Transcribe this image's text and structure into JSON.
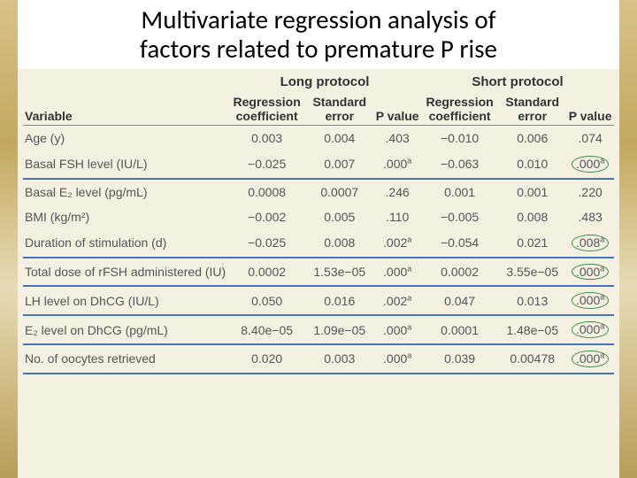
{
  "title": {
    "line1": "Multivariate regression analysis of",
    "line2": "factors related to premature P rise"
  },
  "headers": {
    "protocolA": "Long protocol",
    "protocolB": "Short protocol",
    "variable": "Variable",
    "regCoef": "Regression coefficient",
    "stdErr": "Standard error",
    "pValue": "P value"
  },
  "rows": [
    {
      "var": "Age (y)",
      "rcA": "0.003",
      "seA": "0.004",
      "pA": ".403",
      "rcB": "−0.010",
      "seB": "0.006",
      "pB": ".074",
      "hl": false,
      "circleA": false,
      "circleB": false,
      "supA": "",
      "supB": ""
    },
    {
      "var": "Basal FSH level (IU/L)",
      "rcA": "−0.025",
      "seA": "0.007",
      "pA": ".000",
      "rcB": "−0.063",
      "seB": "0.010",
      "pB": ".000",
      "hl": true,
      "circleA": false,
      "circleB": true,
      "supA": "a",
      "supB": "a"
    },
    {
      "var": "Basal E₂ level (pg/mL)",
      "rcA": "0.0008",
      "seA": "0.0007",
      "pA": ".246",
      "rcB": "0.001",
      "seB": "0.001",
      "pB": ".220",
      "hl": false,
      "circleA": false,
      "circleB": false,
      "supA": "",
      "supB": ""
    },
    {
      "var": "BMI (kg/m²)",
      "rcA": "−0.002",
      "seA": "0.005",
      "pA": ".110",
      "rcB": "−0.005",
      "seB": "0.008",
      "pB": ".483",
      "hl": false,
      "circleA": false,
      "circleB": false,
      "supA": "",
      "supB": ""
    },
    {
      "var": "Duration of stimulation (d)",
      "rcA": "−0.025",
      "seA": "0.008",
      "pA": ".002",
      "rcB": "−0.054",
      "seB": "0.021",
      "pB": ".008",
      "hl": true,
      "circleA": false,
      "circleB": true,
      "supA": "a",
      "supB": "a"
    },
    {
      "var": "Total dose of rFSH administered (IU)",
      "rcA": "0.0002",
      "seA": "1.53e−05",
      "pA": ".000",
      "rcB": "0.0002",
      "seB": "3.55e−05",
      "pB": ".000",
      "hl": true,
      "circleA": false,
      "circleB": true,
      "supA": "a",
      "supB": "a"
    },
    {
      "var": "LH level on DhCG (IU/L)",
      "rcA": "0.050",
      "seA": "0.016",
      "pA": ".002",
      "rcB": "0.047",
      "seB": "0.013",
      "pB": ".000",
      "hl": true,
      "circleA": false,
      "circleB": true,
      "supA": "a",
      "supB": "a"
    },
    {
      "var": "E₂ level on DhCG (pg/mL)",
      "rcA": "8.40e−05",
      "seA": "1.09e−05",
      "pA": ".000",
      "rcB": "0.0001",
      "seB": "1.48e−05",
      "pB": ".000",
      "hl": true,
      "circleA": false,
      "circleB": true,
      "supA": "a",
      "supB": "a"
    },
    {
      "var": "No. of oocytes retrieved",
      "rcA": "0.020",
      "seA": "0.003",
      "pA": ".000",
      "rcB": "0.039",
      "seB": "0.00478",
      "pB": ".000",
      "hl": true,
      "circleA": false,
      "circleB": true,
      "supA": "a",
      "supB": "a"
    }
  ],
  "colors": {
    "tableBg": "#f4f0e2",
    "highlightLine": "#4a74b8",
    "circleBorder": "#3c8b4a"
  }
}
